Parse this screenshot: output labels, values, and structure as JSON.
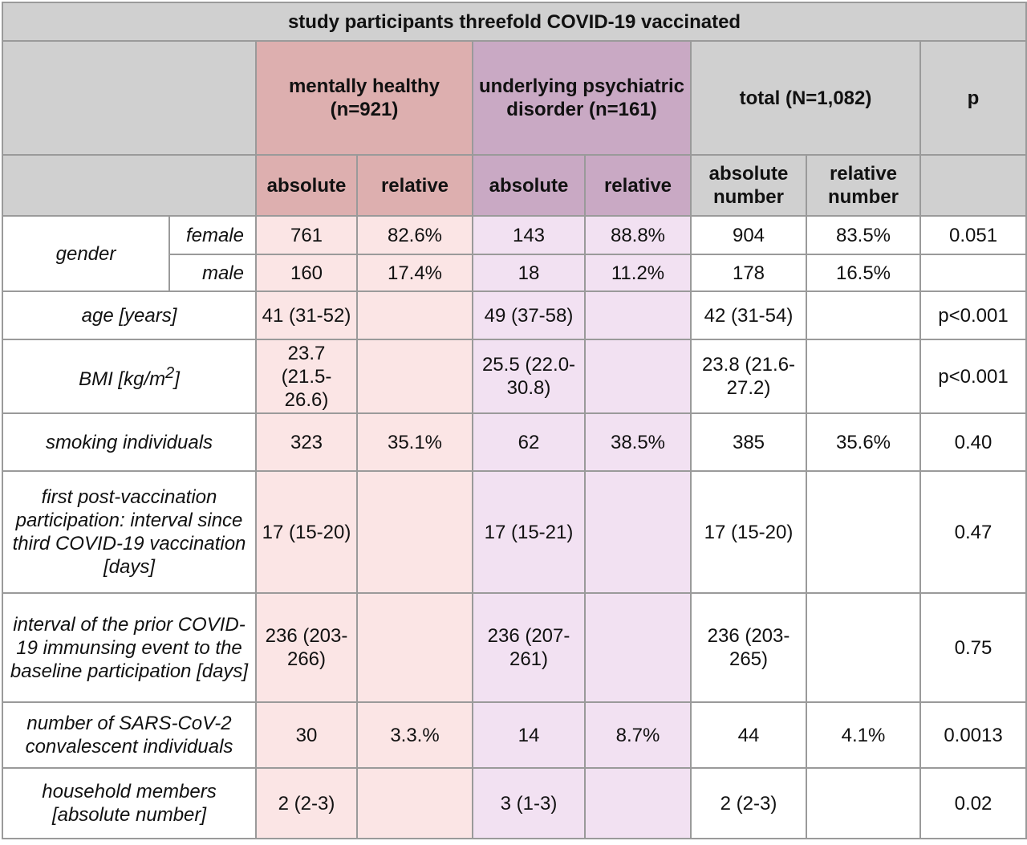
{
  "title": "study participants threefold COVID-19 vaccinated",
  "groups": {
    "healthy": "mentally healthy (n=921)",
    "psych": "underlying psychiatric disorder (n=161)",
    "total": "total (N=1,082)",
    "p": "p"
  },
  "subheaders": {
    "healthy_abs": "absolute",
    "healthy_rel": "relative",
    "psych_abs": "absolute",
    "psych_rel": "relative",
    "total_abs": "absolute number",
    "total_rel": "relative number"
  },
  "rows": {
    "gender": {
      "label": "gender",
      "female": {
        "label": "female",
        "healthy_abs": "761",
        "healthy_rel": "82.6%",
        "psych_abs": "143",
        "psych_rel": "88.8%",
        "total_abs": "904",
        "total_rel": "83.5%",
        "p": "0.051"
      },
      "male": {
        "label": "male",
        "healthy_abs": "160",
        "healthy_rel": "17.4%",
        "psych_abs": "18",
        "psych_rel": "11.2%",
        "total_abs": "178",
        "total_rel": "16.5%",
        "p": ""
      }
    },
    "age": {
      "label": "age [years]",
      "healthy_abs": "41 (31-52)",
      "healthy_rel": "",
      "psych_abs": "49 (37-58)",
      "psych_rel": "",
      "total_abs": "42 (31-54)",
      "total_rel": "",
      "p": "p<0.001"
    },
    "bmi": {
      "label": "BMI [kg/m",
      "label_sup": "2",
      "label_end": "]",
      "healthy_abs": "23.7 (21.5-26.6)",
      "healthy_rel": "",
      "psych_abs": "25.5 (22.0-30.8)",
      "psych_rel": "",
      "total_abs": "23.8 (21.6-27.2)",
      "total_rel": "",
      "p": "p<0.001"
    },
    "smoking": {
      "label": "smoking individuals",
      "healthy_abs": "323",
      "healthy_rel": "35.1%",
      "psych_abs": "62",
      "psych_rel": "38.5%",
      "total_abs": "385",
      "total_rel": "35.6%",
      "p": "0.40"
    },
    "interval_third": {
      "label": "first post-vaccination participation: interval since third COVID-19 vaccination [days]",
      "healthy_abs": "17 (15-20)",
      "healthy_rel": "",
      "psych_abs": "17 (15-21)",
      "psych_rel": "",
      "total_abs": "17 (15-20)",
      "total_rel": "",
      "p": "0.47"
    },
    "interval_prior": {
      "label": "interval of the prior COVID-19 immunsing event to the baseline participation [days]",
      "healthy_abs": "236 (203-266)",
      "healthy_rel": "",
      "psych_abs": "236 (207-261)",
      "psych_rel": "",
      "total_abs": "236 (203-265)",
      "total_rel": "",
      "p": "0.75"
    },
    "convalescent": {
      "label": "number of SARS-CoV-2 convalescent individuals",
      "healthy_abs": "30",
      "healthy_rel": "3.3.%",
      "psych_abs": "14",
      "psych_rel": "8.7%",
      "total_abs": "44",
      "total_rel": "4.1%",
      "p": "0.0013"
    },
    "household": {
      "label": "household members [absolute number]",
      "healthy_abs": "2 (2-3)",
      "healthy_rel": "",
      "psych_abs": "3 (1-3)",
      "psych_rel": "",
      "total_abs": "2 (2-3)",
      "total_rel": "",
      "p": "0.02"
    }
  }
}
